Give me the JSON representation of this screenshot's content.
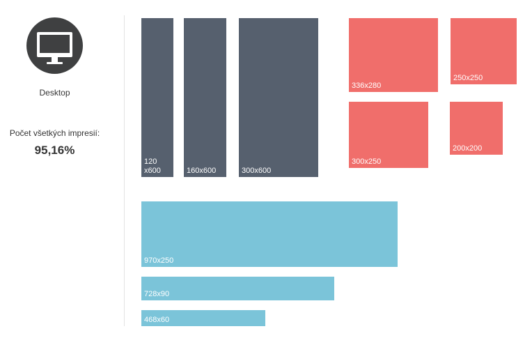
{
  "sidebar": {
    "device_icon": "desktop-monitor-icon",
    "device_label": "Desktop",
    "impressions_label": "Počet všetkých impresií:",
    "impressions_value": "95,16%"
  },
  "ad_formats": {
    "skyscrapers": [
      {
        "label": "120\nx600",
        "size": "120x600"
      },
      {
        "label": "160x600",
        "size": "160x600"
      },
      {
        "label": "300x600",
        "size": "300x600"
      }
    ],
    "rectangles": [
      {
        "label": "336x280",
        "size": "336x280"
      },
      {
        "label": "250x250",
        "size": "250x250"
      },
      {
        "label": "300x250",
        "size": "300x250"
      },
      {
        "label": "200x200",
        "size": "200x200"
      }
    ],
    "banners": [
      {
        "label": "970x250",
        "size": "970x250"
      },
      {
        "label": "728x90",
        "size": "728x90"
      },
      {
        "label": "468x60",
        "size": "468x60"
      }
    ]
  },
  "colors": {
    "skyscraper": "#56606e",
    "rectangle": "#f06e6b",
    "banner": "#7bc4d9",
    "icon_circle": "#3f4041"
  }
}
